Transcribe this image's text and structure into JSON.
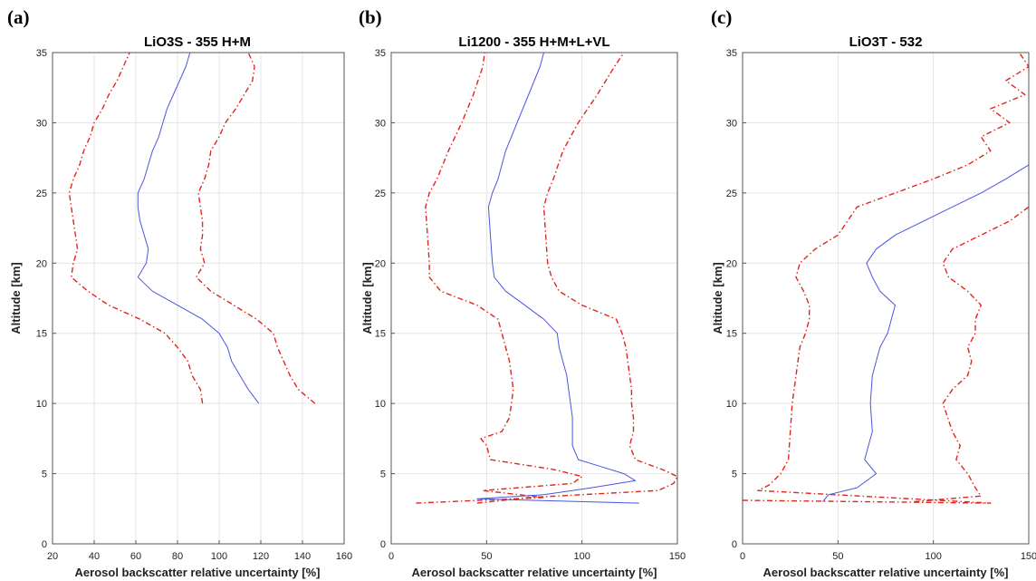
{
  "chart_data": [
    {
      "type": "line",
      "panel_label": "(a)",
      "title": "LiO3S - 355 H+M",
      "xlabel": "Aerosol backscatter relative uncertainty [%]",
      "ylabel": "Altitude [km]",
      "xlim": [
        20,
        160
      ],
      "ylim": [
        0,
        35
      ],
      "xticks": [
        20,
        40,
        60,
        80,
        100,
        120,
        140,
        160
      ],
      "yticks": [
        0,
        5,
        10,
        15,
        20,
        25,
        30,
        35
      ],
      "grid": true,
      "series": [
        {
          "style": "dashdot",
          "color": "#e0251b",
          "y": [
            10,
            11,
            12,
            13,
            14,
            15,
            16,
            17,
            18,
            19,
            20,
            21,
            22,
            23,
            24,
            25,
            26,
            27,
            28,
            29,
            30,
            31,
            32,
            33,
            34,
            35
          ],
          "x": [
            92,
            91,
            87,
            85,
            80,
            74,
            62,
            47,
            37,
            29,
            30,
            32,
            31,
            30,
            29,
            28,
            30,
            33,
            35,
            38,
            40,
            44,
            47,
            51,
            54,
            57
          ]
        },
        {
          "style": "solid",
          "color": "#4a55e0",
          "y": [
            10,
            11,
            12,
            13,
            14,
            15,
            16,
            17,
            18,
            19,
            20,
            21,
            22,
            23,
            24,
            25,
            26,
            27,
            28,
            29,
            30,
            31,
            32,
            33,
            34,
            35
          ],
          "x": [
            119,
            114,
            110,
            106,
            104,
            100,
            92,
            80,
            68,
            61,
            65,
            66,
            64,
            62,
            61,
            61,
            64,
            66,
            68,
            71,
            73,
            75,
            78,
            81,
            84,
            86
          ]
        },
        {
          "style": "dashdot",
          "color": "#e0251b",
          "y": [
            10,
            11,
            12,
            13,
            14,
            15,
            16,
            17,
            18,
            19,
            20,
            21,
            22,
            23,
            24,
            25,
            26,
            27,
            28,
            29,
            30,
            31,
            32,
            33,
            34,
            35
          ],
          "x": [
            146,
            138,
            134,
            131,
            128,
            126,
            118,
            107,
            96,
            89,
            93,
            91,
            92,
            92,
            91,
            90,
            93,
            95,
            96,
            100,
            103,
            108,
            112,
            116,
            117,
            114
          ]
        }
      ]
    },
    {
      "type": "line",
      "panel_label": "(b)",
      "title": "Li1200 - 355 H+M+L+VL",
      "xlabel": "Aerosol backscatter relative uncertainty [%]",
      "ylabel": "Altitude [km]",
      "xlim": [
        0,
        150
      ],
      "ylim": [
        0,
        35
      ],
      "xticks": [
        0,
        50,
        100,
        150
      ],
      "yticks": [
        0,
        5,
        10,
        15,
        20,
        25,
        30,
        35
      ],
      "grid": true,
      "series": [
        {
          "style": "dashdot",
          "color": "#e0251b",
          "y": [
            2.9,
            3.3,
            3.8,
            4.3,
            4.8,
            5.3,
            6,
            7,
            7.5,
            8,
            9,
            10,
            11,
            12,
            13,
            14,
            15,
            16,
            17,
            18,
            19,
            20,
            22,
            24,
            25,
            26,
            28,
            30,
            32,
            34,
            35
          ],
          "x": [
            13,
            80,
            48,
            95,
            100,
            85,
            52,
            50,
            47,
            58,
            62,
            63,
            64,
            63,
            62,
            60,
            58,
            56,
            45,
            26,
            20,
            20,
            19,
            18,
            20,
            24,
            30,
            37,
            43,
            48,
            49
          ]
        },
        {
          "style": "solid",
          "color": "#4a55e0",
          "y": [
            2.9,
            3.2,
            3.5,
            4,
            4.5,
            5,
            5.5,
            6,
            7,
            8,
            9,
            10,
            11,
            12,
            13,
            14,
            15,
            16,
            17,
            18,
            19,
            20,
            22,
            24,
            25,
            26,
            28,
            30,
            32,
            34,
            35
          ],
          "x": [
            130,
            45,
            80,
            105,
            128,
            122,
            110,
            98,
            95,
            95,
            95,
            94,
            93,
            92,
            90,
            88,
            87,
            80,
            70,
            60,
            54,
            53,
            52,
            51,
            53,
            56,
            60,
            66,
            72,
            78,
            80
          ]
        },
        {
          "style": "dashdot",
          "color": "#e0251b",
          "y": [
            2.9,
            3.3,
            3.8,
            4.3,
            4.8,
            5.3,
            6,
            7,
            8,
            9,
            10,
            11,
            12,
            13,
            14,
            15,
            16,
            17,
            18,
            19,
            20,
            22,
            24,
            25,
            26,
            28,
            30,
            32,
            34,
            35
          ],
          "x": [
            45,
            72,
            140,
            148,
            150,
            142,
            128,
            125,
            127,
            127,
            126,
            126,
            125,
            124,
            123,
            121,
            118,
            100,
            88,
            84,
            82,
            81,
            80,
            82,
            85,
            90,
            98,
            108,
            117,
            122
          ]
        }
      ]
    },
    {
      "type": "line",
      "panel_label": "(c)",
      "title": "LiO3T - 532",
      "xlabel": "Aerosol backscatter relative uncertainty [%]",
      "ylabel": "Altitude [km]",
      "xlim": [
        0,
        150
      ],
      "ylim": [
        0,
        35
      ],
      "xticks": [
        0,
        50,
        100,
        150
      ],
      "yticks": [
        0,
        5,
        10,
        15,
        20,
        25,
        30,
        35
      ],
      "grid": true,
      "series": [
        {
          "style": "dashdot",
          "color": "#e0251b",
          "y": [
            3.1,
            2.9,
            3.8,
            4.2,
            5,
            6,
            8,
            10,
            12,
            14,
            15,
            16,
            17,
            18,
            19,
            20,
            21,
            22,
            23,
            24,
            25,
            26,
            27,
            28,
            29,
            30,
            31,
            32,
            33,
            34,
            35
          ],
          "x": [
            0,
            130,
            8,
            14,
            20,
            24,
            25,
            26,
            28,
            30,
            33,
            35,
            35,
            32,
            28,
            30,
            38,
            50,
            55,
            60,
            80,
            100,
            118,
            130,
            125,
            140,
            130,
            148,
            138,
            150,
            145
          ]
        },
        {
          "style": "solid",
          "color": "#4a55e0",
          "y": [
            3,
            3.5,
            4,
            5,
            6,
            7,
            8,
            10,
            12,
            14,
            15,
            16,
            17,
            18,
            19,
            20,
            21,
            22,
            23,
            24,
            25,
            26,
            27
          ],
          "x": [
            42,
            45,
            60,
            70,
            64,
            66,
            68,
            67,
            68,
            72,
            76,
            78,
            80,
            72,
            68,
            65,
            70,
            80,
            95,
            110,
            125,
            138,
            150
          ]
        },
        {
          "style": "dashdot",
          "color": "#e0251b",
          "y": [
            3,
            3.4,
            4,
            5,
            6,
            7,
            8,
            10,
            11,
            12,
            13,
            14,
            15,
            16,
            17,
            18,
            19,
            20,
            21,
            22,
            23,
            24
          ],
          "x": [
            90,
            125,
            122,
            118,
            112,
            114,
            110,
            105,
            110,
            118,
            120,
            118,
            122,
            122,
            125,
            118,
            108,
            105,
            110,
            125,
            140,
            150
          ]
        }
      ]
    }
  ]
}
